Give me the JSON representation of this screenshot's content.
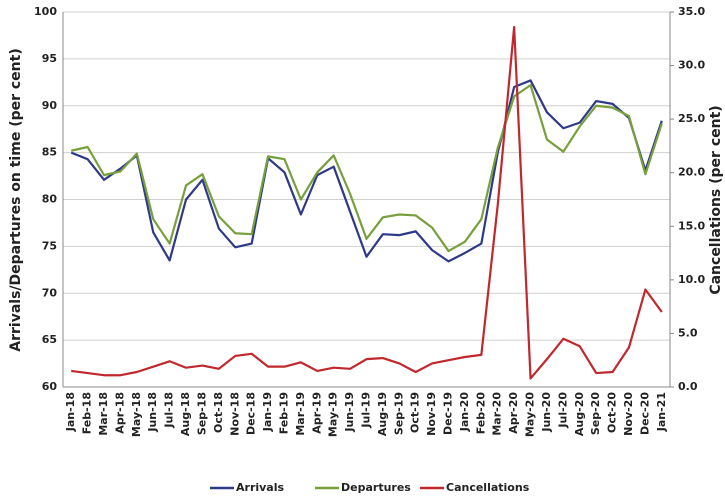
{
  "chart_data": {
    "type": "line",
    "categories": [
      "Jan-18",
      "Feb-18",
      "Mar-18",
      "Apr-18",
      "May-18",
      "Jun-18",
      "Jul-18",
      "Aug-18",
      "Sep-18",
      "Oct-18",
      "Nov-18",
      "Dec-18",
      "Jan-19",
      "Feb-19",
      "Mar-19",
      "Apr-19",
      "May-19",
      "Jun-19",
      "Jul-19",
      "Aug-19",
      "Sep-19",
      "Oct-19",
      "Nov-19",
      "Dec-19",
      "Jan-20",
      "Feb-20",
      "Mar-20",
      "Apr-20",
      "May-20",
      "Jun-20",
      "Jul-20",
      "Aug-20",
      "Sep-20",
      "Oct-20",
      "Nov-20",
      "Dec-20",
      "Jan-21"
    ],
    "y_label": "Arrivals/Departures on time (per cent)",
    "y2_label": "Cancellations (per cent)",
    "ylim": [
      60,
      100
    ],
    "yticks": [
      60,
      65,
      70,
      75,
      80,
      85,
      90,
      95,
      100
    ],
    "y2lim": [
      0,
      35
    ],
    "y2ticks": [
      {
        "value": 0,
        "label": "0.0"
      },
      {
        "value": 5,
        "label": "5.0"
      },
      {
        "value": 10,
        "label": "10.0"
      },
      {
        "value": 15,
        "label": "15.0"
      },
      {
        "value": 20,
        "label": "20.0"
      },
      {
        "value": 25,
        "label": "25.0"
      },
      {
        "value": 30,
        "label": "30.0"
      },
      {
        "value": 35,
        "label": "35.0"
      }
    ],
    "grid": true,
    "legend": "bottom",
    "series": [
      {
        "name": "Arrivals",
        "color": "#2e3a87",
        "values": [
          85,
          84.3,
          82.1,
          83.3,
          84.7,
          76.5,
          73.5,
          80,
          82.1,
          76.9,
          74.9,
          75.3,
          84.4,
          82.9,
          78.4,
          82.6,
          83.5,
          78.7,
          73.9,
          76.3,
          76.2,
          76.6,
          74.6,
          73.4,
          74.3,
          75.3,
          85,
          92,
          92.7,
          89.3,
          87.6,
          88.2,
          90.5,
          90.2,
          88.7,
          83.1,
          88.4
        ]
      },
      {
        "name": "Departures",
        "color": "#77a03c",
        "values": [
          85.2,
          85.6,
          82.6,
          83.0,
          84.9,
          77.9,
          75.3,
          81.5,
          82.7,
          78.2,
          76.4,
          76.3,
          84.6,
          84.3,
          80.0,
          82.9,
          84.7,
          80.6,
          75.8,
          78.1,
          78.4,
          78.3,
          77.0,
          74.5,
          75.5,
          77.9,
          85.5,
          91.0,
          92.2,
          86.4,
          85.1,
          87.8,
          90.0,
          89.8,
          88.9,
          82.7,
          88.1
        ]
      },
      {
        "name": "Cancellations",
        "color": "#c0282d",
        "axis": "y2",
        "values": [
          1.5,
          1.3,
          1.1,
          1.1,
          1.4,
          1.9,
          2.4,
          1.8,
          2.0,
          1.7,
          2.9,
          3.1,
          1.9,
          1.9,
          2.3,
          1.5,
          1.8,
          1.7,
          2.6,
          2.7,
          2.2,
          1.4,
          2.2,
          2.5,
          2.8,
          3.0,
          17.0,
          33.6,
          0.8,
          2.6,
          4.5,
          3.8,
          1.3,
          1.4,
          3.7,
          9.1,
          7.0
        ]
      }
    ]
  }
}
